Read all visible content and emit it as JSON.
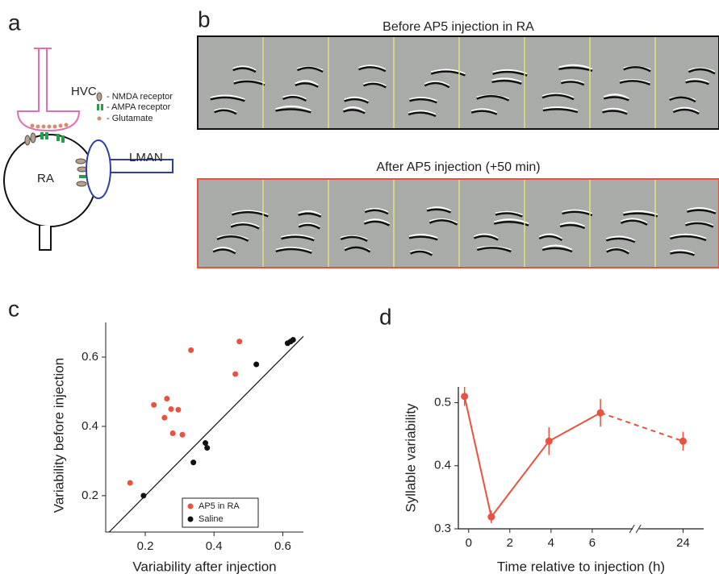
{
  "panel_labels": [
    "a",
    "b",
    "c",
    "d"
  ],
  "diagram": {
    "hvc": "HVC",
    "ra": "RA",
    "lman": "LMAN",
    "legend": [
      "- NMDA receptor",
      "- AMPA receptor",
      "- Glutamate"
    ]
  },
  "spectrograms": {
    "before_title": "Before AP5 injection in RA",
    "after_title": "After AP5 injection (+50 min)"
  },
  "chart_data": [
    {
      "type": "scatter",
      "xlabel": "Variability after injection",
      "ylabel": "Variability before injection",
      "xlim": [
        0.085,
        0.66
      ],
      "ylim": [
        0.095,
        0.7
      ],
      "xticks": [
        0.2,
        0.4,
        0.6
      ],
      "yticks": [
        0.2,
        0.4,
        0.6
      ],
      "identity_line": true,
      "legend": "lower right",
      "series": [
        {
          "name": "AP5  in RA",
          "color": "#e8523f",
          "x": [
            0.156,
            0.225,
            0.263,
            0.256,
            0.275,
            0.28,
            0.296,
            0.308,
            0.333,
            0.462,
            0.474
          ],
          "values": [
            0.237,
            0.462,
            0.48,
            0.425,
            0.45,
            0.38,
            0.448,
            0.376,
            0.62,
            0.551,
            0.645
          ]
        },
        {
          "name": "Saline",
          "color": "#111111",
          "x": [
            0.195,
            0.34,
            0.375,
            0.38,
            0.523,
            0.614,
            0.623,
            0.63
          ],
          "values": [
            0.2,
            0.296,
            0.352,
            0.338,
            0.579,
            0.64,
            0.645,
            0.65
          ]
        }
      ]
    },
    {
      "type": "line",
      "xlabel": "Time relative to injection (h)",
      "ylabel": "Syllable variability",
      "xlim": [
        -0.5,
        25
      ],
      "axis_break": [
        7.5,
        22.5
      ],
      "ylim": [
        0.3,
        0.525
      ],
      "xticks": [
        0,
        2,
        4,
        6,
        24
      ],
      "yticks": [
        0.3,
        0.4,
        0.5
      ],
      "dashed_from": 3,
      "series": [
        {
          "color": "#e8523f",
          "x": [
            -0.2,
            1.1,
            3.9,
            6.4,
            24
          ],
          "values": [
            0.51,
            0.319,
            0.439,
            0.484,
            0.439
          ],
          "errors": [
            0.015,
            0.01,
            0.022,
            0.022,
            0.015
          ]
        }
      ]
    }
  ]
}
